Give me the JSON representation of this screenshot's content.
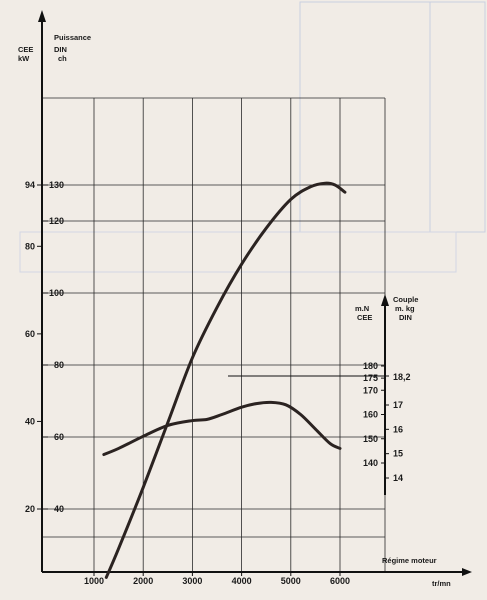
{
  "chart_data": {
    "type": "line",
    "xlabel": "Régime moteur",
    "xunit": "tr/mn",
    "xlim": [
      900,
      6800
    ],
    "x_ticks": [
      1000,
      2000,
      3000,
      4000,
      5000,
      6000
    ],
    "left_axis": {
      "label_cee": "CEE",
      "unit_cee": "kW",
      "label_din": "Puissance",
      "unit_din_1": "DIN",
      "unit_din_2": "ch",
      "ticks_kw": [
        20,
        40,
        60,
        80,
        94
      ],
      "ticks_ch": [
        40,
        60,
        80,
        100,
        120,
        130
      ]
    },
    "right_axis": {
      "title": "Couple",
      "unit_right_1": "m. kg",
      "unit_right_2": "DIN",
      "unit_left_1": "m.N",
      "unit_left_2": "CEE",
      "ticks_mN": [
        140,
        150,
        160,
        170,
        175,
        180
      ],
      "ticks_mkg": [
        14,
        15,
        16,
        17
      ],
      "peak_label": "18,2"
    },
    "series": [
      {
        "key": "power",
        "axis": "ch",
        "x": [
          1250,
          1500,
          2000,
          2500,
          3000,
          3500,
          4000,
          4500,
          5000,
          5400,
          5700,
          5900,
          6100
        ],
        "y": [
          21,
          29,
          46,
          64,
          82,
          96,
          108,
          118,
          126,
          129.5,
          130.5,
          130,
          128
        ]
      },
      {
        "key": "torque",
        "axis": "mN",
        "x": [
          1200,
          1500,
          2000,
          2500,
          3000,
          3300,
          3600,
          4000,
          4300,
          4600,
          4900,
          5200,
          5500,
          5800,
          6000
        ],
        "y": [
          143.5,
          146,
          151,
          155.5,
          157.5,
          158,
          160,
          163,
          164.5,
          165,
          164,
          160,
          154,
          148,
          146
        ]
      }
    ]
  }
}
